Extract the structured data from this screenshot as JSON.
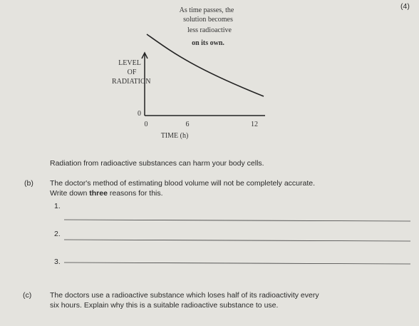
{
  "marks": "(4)",
  "graph": {
    "annotation": [
      "As time passes, the",
      "solution becomes",
      "less radioactive",
      "on its own."
    ],
    "y_label": [
      "LEVEL",
      "OF",
      "RADIATION"
    ],
    "y_tick": "0",
    "x_ticks": [
      "0",
      "6",
      "12"
    ],
    "x_label": "TIME (h)"
  },
  "statement": "Radiation from radioactive substances can harm your body cells.",
  "part_b": {
    "label": "(b)",
    "line1": "The doctor's method of estimating blood volume will not be completely accurate.",
    "line2": [
      "Write down ",
      "three",
      " reasons for this."
    ],
    "answers": [
      "1.",
      "2.",
      "3."
    ]
  },
  "part_c": {
    "label": "(c)",
    "lines": [
      "The doctors use a radioactive substance which loses half of its radioactivity every",
      "six hours. Explain why this is a suitable radioactive substance to use."
    ]
  }
}
